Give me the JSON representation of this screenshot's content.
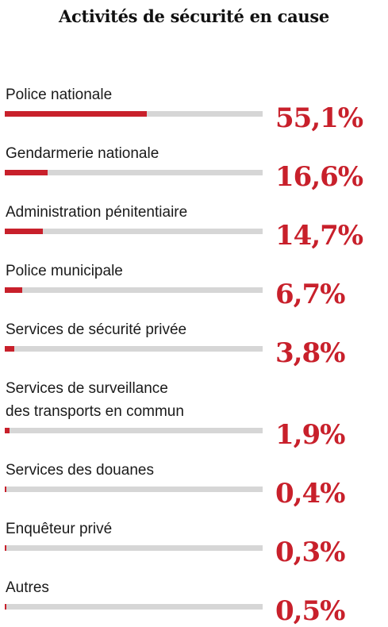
{
  "chart_data": {
    "type": "bar",
    "title": "Activités de sécurité en cause",
    "xlabel": "",
    "ylabel": "",
    "ylim": [
      0,
      100
    ],
    "unit": "%",
    "grid": false,
    "categories": [
      "Police nationale",
      "Gendarmerie nationale",
      "Administration pénitentiaire",
      "Police municipale",
      "Services de sécurité privée",
      "Services de surveillance\ndes transports en commun",
      "Services des douanes",
      "Enquêteur privé",
      "Autres"
    ],
    "values": [
      55.1,
      16.6,
      14.7,
      6.7,
      3.8,
      1.9,
      0.4,
      0.3,
      0.5
    ],
    "value_labels": [
      "55,1%",
      "16,6%",
      "14,7%",
      "6,7%",
      "3,8%",
      "1,9%",
      "0,4%",
      "0,3%",
      "0,5%"
    ],
    "colors": {
      "bar": "#c8202b",
      "track": "#d6d6d6",
      "value_text": "#c8202b",
      "label_text": "#1a1a1a"
    }
  }
}
